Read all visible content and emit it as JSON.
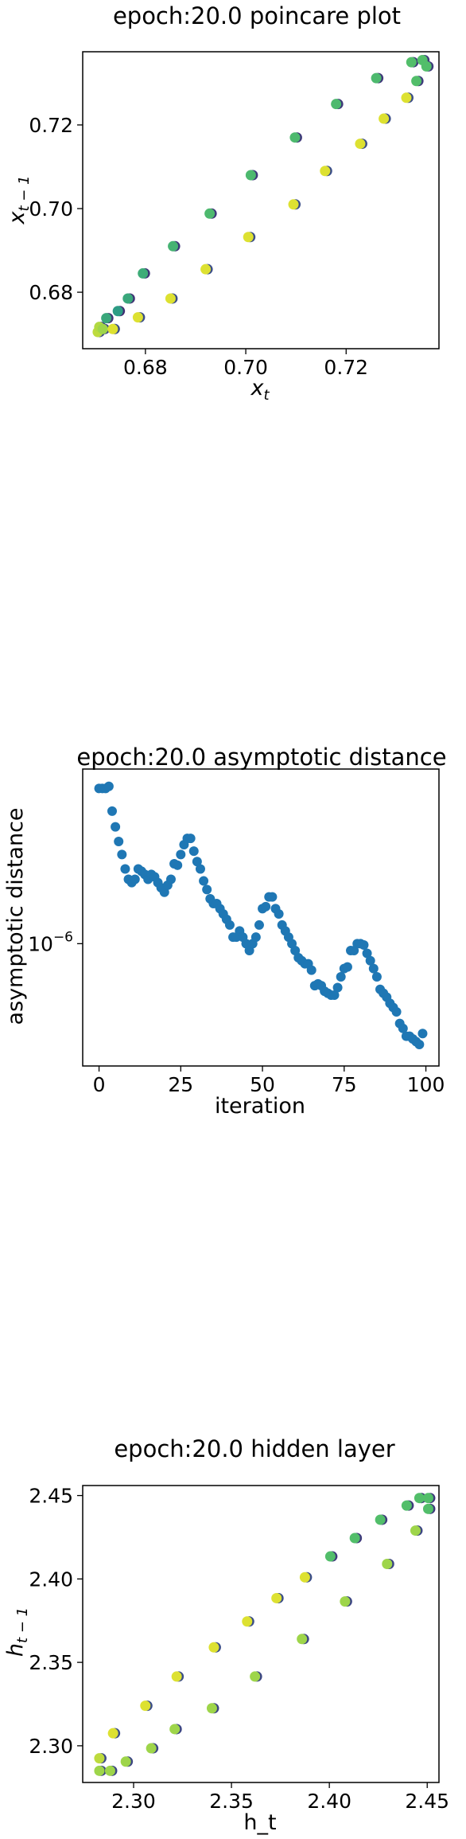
{
  "colors": {
    "viridis": [
      "#440154",
      "#3b528b",
      "#21918c",
      "#5ec962",
      "#fde725"
    ],
    "point_blue": "#1f77b4",
    "frame": "#000000"
  },
  "chart_data": [
    {
      "type": "scatter",
      "title": "epoch:20.0 poincare plot",
      "xlabel": "x",
      "xlabel_sub": "t",
      "ylabel": "x",
      "ylabel_sub": "t − 1",
      "xlim": [
        0.6675,
        0.7385
      ],
      "ylim": [
        0.6665,
        0.7375
      ],
      "x_ticks": [
        0.68,
        0.7,
        0.72
      ],
      "x_tick_labels": [
        "0.68",
        "0.70",
        "0.72"
      ],
      "y_ticks": [
        0.68,
        0.7,
        0.72
      ],
      "y_tick_labels": [
        "0.68",
        "0.70",
        "0.72"
      ],
      "grid": false,
      "color_by": "iteration (viridis)",
      "points": [
        {
          "x": 0.6705,
          "y": 0.6705,
          "c": 0.9
        },
        {
          "x": 0.6708,
          "y": 0.6717,
          "c": 0.88
        },
        {
          "x": 0.6715,
          "y": 0.6712,
          "c": 0.85
        },
        {
          "x": 0.6722,
          "y": 0.6738,
          "c": 0.6
        },
        {
          "x": 0.6735,
          "y": 0.6712,
          "c": 0.95
        },
        {
          "x": 0.6745,
          "y": 0.6755,
          "c": 0.55
        },
        {
          "x": 0.6765,
          "y": 0.6785,
          "c": 0.6
        },
        {
          "x": 0.6785,
          "y": 0.674,
          "c": 0.95
        },
        {
          "x": 0.6795,
          "y": 0.6845,
          "c": 0.62
        },
        {
          "x": 0.685,
          "y": 0.6785,
          "c": 0.95
        },
        {
          "x": 0.6855,
          "y": 0.691,
          "c": 0.65
        },
        {
          "x": 0.692,
          "y": 0.6855,
          "c": 0.95
        },
        {
          "x": 0.6928,
          "y": 0.6988,
          "c": 0.68
        },
        {
          "x": 0.7005,
          "y": 0.6932,
          "c": 0.95
        },
        {
          "x": 0.701,
          "y": 0.708,
          "c": 0.68
        },
        {
          "x": 0.7095,
          "y": 0.701,
          "c": 0.95
        },
        {
          "x": 0.7098,
          "y": 0.717,
          "c": 0.68
        },
        {
          "x": 0.7158,
          "y": 0.709,
          "c": 0.95
        },
        {
          "x": 0.718,
          "y": 0.725,
          "c": 0.68
        },
        {
          "x": 0.7228,
          "y": 0.7155,
          "c": 0.95
        },
        {
          "x": 0.726,
          "y": 0.7312,
          "c": 0.68
        },
        {
          "x": 0.7275,
          "y": 0.7215,
          "c": 0.95
        },
        {
          "x": 0.732,
          "y": 0.7265,
          "c": 0.95
        },
        {
          "x": 0.733,
          "y": 0.735,
          "c": 0.7
        },
        {
          "x": 0.734,
          "y": 0.7305,
          "c": 0.7
        },
        {
          "x": 0.7352,
          "y": 0.7355,
          "c": 0.7
        },
        {
          "x": 0.736,
          "y": 0.734,
          "c": 0.7
        }
      ]
    },
    {
      "type": "scatter",
      "title": "epoch:20.0 asymptotic distance",
      "xlabel": "iteration",
      "ylabel": "asymptotic distance",
      "xlim": [
        -5,
        104
      ],
      "y_scale": "log",
      "ylim": [
        4e-07,
        3.7e-06
      ],
      "x_ticks": [
        0,
        25,
        50,
        75,
        100
      ],
      "x_tick_labels": [
        "0",
        "25",
        "50",
        "75",
        "100"
      ],
      "y_ticks": [
        1e-06
      ],
      "y_tick_labels": [
        "10"
      ],
      "y_tick_label_exp": "−6",
      "grid": false,
      "x": [
        0,
        1,
        2,
        3,
        4,
        5,
        6,
        7,
        8,
        9,
        10,
        11,
        12,
        13,
        14,
        15,
        16,
        17,
        18,
        19,
        20,
        21,
        22,
        23,
        24,
        25,
        26,
        27,
        28,
        29,
        30,
        31,
        32,
        33,
        34,
        35,
        36,
        37,
        38,
        39,
        40,
        41,
        42,
        43,
        44,
        45,
        46,
        47,
        48,
        49,
        50,
        51,
        52,
        53,
        54,
        55,
        56,
        57,
        58,
        59,
        60,
        61,
        62,
        63,
        64,
        65,
        66,
        67,
        68,
        69,
        70,
        71,
        72,
        73,
        74,
        75,
        76,
        77,
        78,
        79,
        80,
        81,
        82,
        83,
        84,
        85,
        86,
        87,
        88,
        89,
        90,
        91,
        92,
        93,
        94,
        95,
        96,
        97,
        98,
        99
      ],
      "y": [
        3.2e-06,
        3.2e-06,
        3.2e-06,
        3.25e-06,
        2.7e-06,
        2.4e-06,
        2.15e-06,
        1.95e-06,
        1.75e-06,
        1.62e-06,
        1.58e-06,
        1.62e-06,
        1.75e-06,
        1.72e-06,
        1.68e-06,
        1.62e-06,
        1.68e-06,
        1.65e-06,
        1.58e-06,
        1.52e-06,
        1.47e-06,
        1.55e-06,
        1.62e-06,
        1.82e-06,
        1.8e-06,
        1.95e-06,
        2.1e-06,
        2.2e-06,
        2.2e-06,
        2e-06,
        1.85e-06,
        1.75e-06,
        1.6e-06,
        1.5e-06,
        1.4e-06,
        1.35e-06,
        1.35e-06,
        1.3e-06,
        1.25e-06,
        1.2e-06,
        1.15e-06,
        1.05e-06,
        1.05e-06,
        1.1e-06,
        1.05e-06,
        1e-06,
        9.5e-07,
        1e-06,
        1.05e-06,
        1.15e-06,
        1.3e-06,
        1.32e-06,
        1.42e-06,
        1.42e-06,
        1.3e-06,
        1.25e-06,
        1.15e-06,
        1.1e-06,
        1.05e-06,
        1e-06,
        9.5e-07,
        9e-07,
        8.8e-07,
        8.6e-07,
        8.6e-07,
        8.2e-07,
        7.3e-07,
        7.4e-07,
        7.3e-07,
        7e-07,
        6.9e-07,
        6.8e-07,
        6.8e-07,
        7.2e-07,
        7.8e-07,
        8.3e-07,
        8.4e-07,
        9.5e-07,
        9.5e-07,
        1e-06,
        1e-06,
        9.9e-07,
        9.3e-07,
        8.8e-07,
        8.3e-07,
        7.8e-07,
        7.1e-07,
        6.9e-07,
        6.7e-07,
        6.4e-07,
        6.2e-07,
        6e-07,
        5.5e-07,
        5.3e-07,
        5e-07,
        5e-07,
        4.9e-07,
        4.8e-07,
        4.7e-07,
        5.1e-07
      ]
    },
    {
      "type": "scatter",
      "title": "epoch:20.0 hidden layer",
      "xlabel": "h_t",
      "ylabel": "h",
      "ylabel_sub": "t − 1",
      "xlim": [
        2.274,
        2.456
      ],
      "ylim": [
        2.278,
        2.456
      ],
      "x_ticks": [
        2.3,
        2.35,
        2.4,
        2.45
      ],
      "x_tick_labels": [
        "2.30",
        "2.35",
        "2.40",
        "2.45"
      ],
      "y_ticks": [
        2.3,
        2.35,
        2.4,
        2.45
      ],
      "y_tick_labels": [
        "2.30",
        "2.35",
        "2.40",
        "2.45"
      ],
      "grid": false,
      "color_by": "iteration (viridis)",
      "points": [
        {
          "x": 2.2825,
          "y": 2.2925,
          "c": 0.9
        },
        {
          "x": 2.2825,
          "y": 2.285,
          "c": 0.85
        },
        {
          "x": 2.288,
          "y": 2.285,
          "c": 0.85
        },
        {
          "x": 2.2895,
          "y": 2.3075,
          "c": 0.95
        },
        {
          "x": 2.296,
          "y": 2.2905,
          "c": 0.85
        },
        {
          "x": 2.306,
          "y": 2.324,
          "c": 0.95
        },
        {
          "x": 2.309,
          "y": 2.2985,
          "c": 0.85
        },
        {
          "x": 2.321,
          "y": 2.31,
          "c": 0.85
        },
        {
          "x": 2.322,
          "y": 2.3415,
          "c": 0.95
        },
        {
          "x": 2.34,
          "y": 2.3225,
          "c": 0.85
        },
        {
          "x": 2.341,
          "y": 2.359,
          "c": 0.95
        },
        {
          "x": 2.358,
          "y": 2.3745,
          "c": 0.95
        },
        {
          "x": 2.362,
          "y": 2.3415,
          "c": 0.85
        },
        {
          "x": 2.373,
          "y": 2.3885,
          "c": 0.95
        },
        {
          "x": 2.386,
          "y": 2.364,
          "c": 0.85
        },
        {
          "x": 2.3875,
          "y": 2.401,
          "c": 0.95
        },
        {
          "x": 2.4005,
          "y": 2.4135,
          "c": 0.7
        },
        {
          "x": 2.408,
          "y": 2.3865,
          "c": 0.85
        },
        {
          "x": 2.413,
          "y": 2.4245,
          "c": 0.7
        },
        {
          "x": 2.426,
          "y": 2.4355,
          "c": 0.7
        },
        {
          "x": 2.4295,
          "y": 2.409,
          "c": 0.85
        },
        {
          "x": 2.4395,
          "y": 2.444,
          "c": 0.7
        },
        {
          "x": 2.444,
          "y": 2.429,
          "c": 0.85
        },
        {
          "x": 2.446,
          "y": 2.4485,
          "c": 0.7
        },
        {
          "x": 2.4505,
          "y": 2.4485,
          "c": 0.7
        },
        {
          "x": 2.4505,
          "y": 2.442,
          "c": 0.7
        }
      ]
    }
  ]
}
